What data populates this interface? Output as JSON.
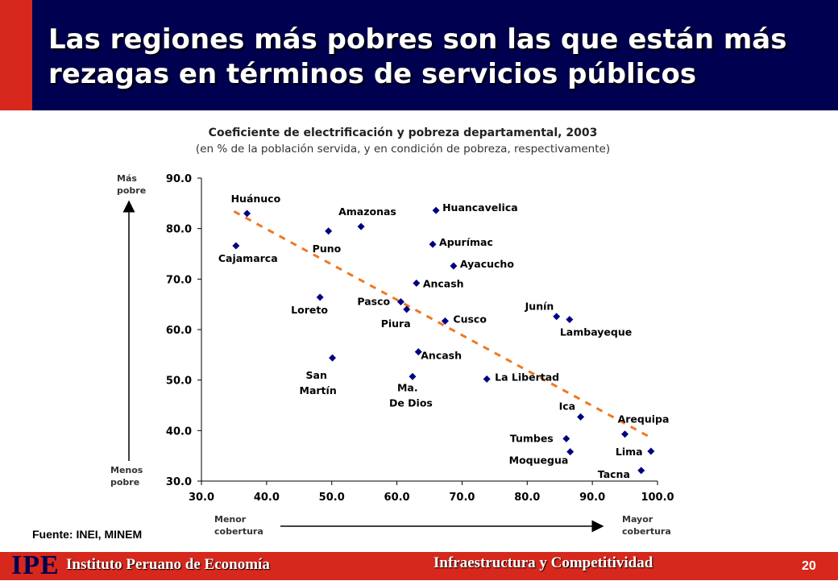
{
  "header": {
    "title": "Las regiones más pobres son las que están más rezagas en términos de servicios públicos"
  },
  "chart_data": {
    "type": "scatter",
    "title": "Coeficiente de electrificación y pobreza departamental, 2003",
    "subtitle": "(en % de la población servida, y en condición de pobreza, respectivamente)",
    "xlim": [
      30.0,
      100.0
    ],
    "ylim": [
      30.0,
      90.0
    ],
    "x_ticks": [
      "30.0",
      "40.0",
      "50.0",
      "60.0",
      "70.0",
      "80.0",
      "90.0",
      "100.0"
    ],
    "y_ticks": [
      "30.0",
      "40.0",
      "50.0",
      "60.0",
      "70.0",
      "80.0",
      "90.0"
    ],
    "y_axis_top_label": "Más pobre",
    "y_axis_bottom_label": "Menos pobre",
    "x_axis_left_label": "Menor cobertura",
    "x_axis_right_label": "Mayor cobertura",
    "points": [
      {
        "label": "Huánuco",
        "x": 37.0,
        "y": 83.0
      },
      {
        "label": "Cajamarca",
        "x": 35.3,
        "y": 76.6
      },
      {
        "label": "Amazonas",
        "x": 54.5,
        "y": 80.4
      },
      {
        "label": "Puno",
        "x": 49.5,
        "y": 79.5
      },
      {
        "label": "Huancavelica",
        "x": 66.0,
        "y": 83.6
      },
      {
        "label": "Apurímac",
        "x": 65.5,
        "y": 76.9
      },
      {
        "label": "Ayacucho",
        "x": 68.7,
        "y": 72.6
      },
      {
        "label": "Ancash",
        "x": 63.0,
        "y": 69.2
      },
      {
        "label": "Loreto",
        "x": 48.2,
        "y": 66.4
      },
      {
        "label": "Pasco",
        "x": 60.6,
        "y": 65.5
      },
      {
        "label": "Piura",
        "x": 61.5,
        "y": 64.0
      },
      {
        "label": "Cusco",
        "x": 67.4,
        "y": 61.7
      },
      {
        "label": "Junín",
        "x": 84.5,
        "y": 62.6
      },
      {
        "label": "Lambayeque",
        "x": 86.5,
        "y": 62.0
      },
      {
        "label": "Ancash",
        "x": 63.3,
        "y": 55.6
      },
      {
        "label": "San Martín",
        "x": 50.1,
        "y": 54.4
      },
      {
        "label": "Ma. De Dios",
        "x": 62.4,
        "y": 50.7
      },
      {
        "label": "La Libertad",
        "x": 73.8,
        "y": 50.2
      },
      {
        "label": "Ica",
        "x": 88.2,
        "y": 42.7
      },
      {
        "label": "Arequipa",
        "x": 95.0,
        "y": 39.3
      },
      {
        "label": "Tumbes",
        "x": 86.0,
        "y": 38.4
      },
      {
        "label": "Lima",
        "x": 99.0,
        "y": 35.9
      },
      {
        "label": "Moquegua",
        "x": 86.6,
        "y": 35.8
      },
      {
        "label": "Tacna",
        "x": 97.5,
        "y": 32.1
      }
    ],
    "trendline": {
      "x": [
        35.0,
        99.0
      ],
      "y": [
        83.4,
        38.6
      ]
    },
    "marker_color": "#000080",
    "trend_color": "#f07820"
  },
  "source": "Fuente: INEI, MINEM",
  "footer": {
    "logo": "IPE",
    "institution": "Instituto Peruano de Economía",
    "section": "Infraestructura y Competitividad",
    "page": "20"
  }
}
